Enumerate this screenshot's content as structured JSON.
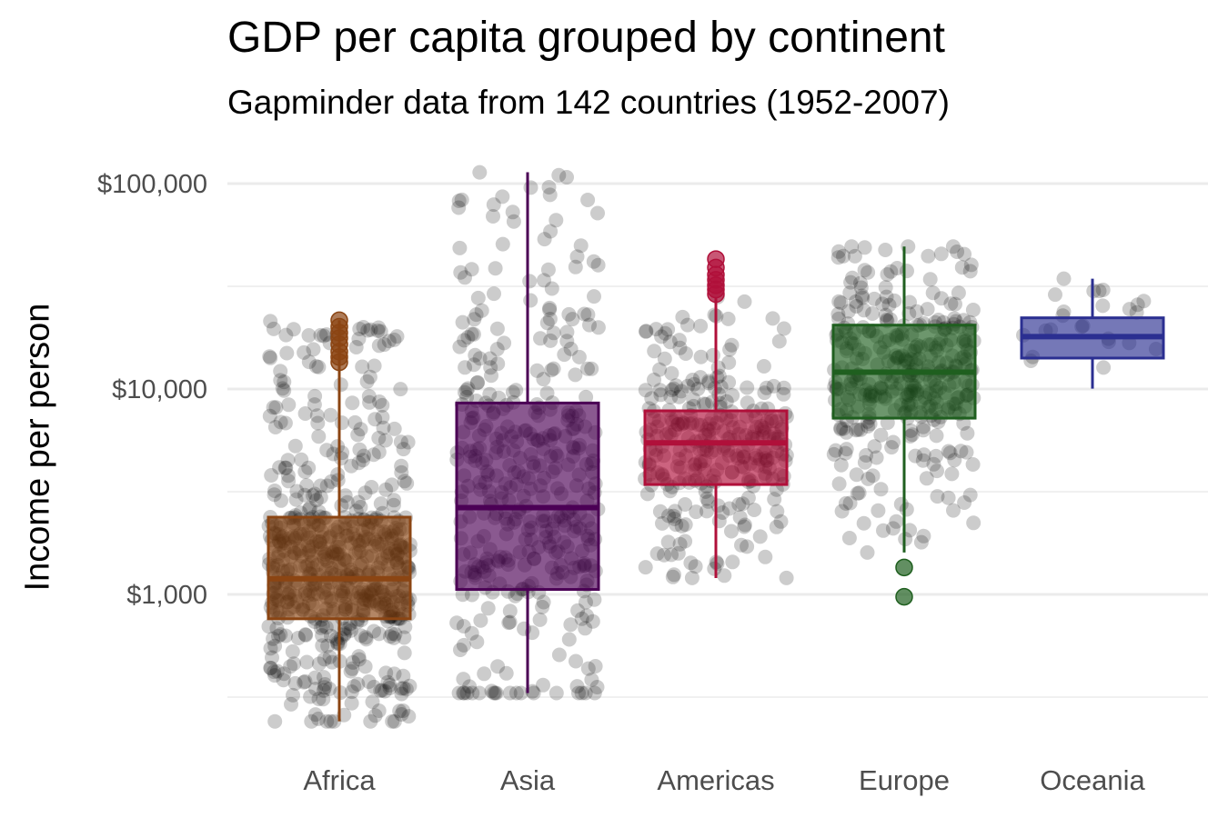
{
  "chart_data": {
    "type": "box",
    "title": "GDP per capita grouped by continent",
    "subtitle": "Gapminder data from 142 countries (1952-2007)",
    "xlabel": "",
    "ylabel": "Income per person",
    "yscale": "log10",
    "ylim": [
      230,
      130000
    ],
    "yticks": [
      {
        "value": 1000,
        "label": "$1,000"
      },
      {
        "value": 10000,
        "label": "$10,000"
      },
      {
        "value": 100000,
        "label": "$100,000"
      }
    ],
    "grid": true,
    "legend": "none",
    "categories": [
      "Africa",
      "Asia",
      "Americas",
      "Europe",
      "Oceania"
    ],
    "series": [
      {
        "category": "Africa",
        "color": "#8B4513",
        "points": 624,
        "box": {
          "whisker_low": 241,
          "q1": 761,
          "median": 1192,
          "q3": 2377,
          "whisker_high": 21600
        },
        "outliers": [
          13500,
          14300,
          15200,
          16500,
          17700,
          18800,
          20100,
          21600
        ]
      },
      {
        "category": "Asia",
        "color": "#4B0055",
        "points": 396,
        "box": {
          "whisker_low": 331,
          "q1": 1057,
          "median": 2647,
          "q3": 8549,
          "whisker_high": 113523
        },
        "outliers": []
      },
      {
        "category": "Americas",
        "color": "#B0103A",
        "points": 300,
        "box": {
          "whisker_low": 1202,
          "q1": 3428,
          "median": 5466,
          "q3": 7830,
          "whisker_high": 28000
        },
        "outliers": [
          29000,
          30500,
          32000,
          34000,
          36000,
          39000,
          42900
        ]
      },
      {
        "category": "Europe",
        "color": "#1F5F1F",
        "points": 360,
        "box": {
          "whisker_low": 1600,
          "q1": 7213,
          "median": 12081,
          "q3": 20461,
          "whisker_high": 49357
        },
        "outliers": [
          974,
          1353
        ]
      },
      {
        "category": "Oceania",
        "color": "#2B2F91",
        "points": 24,
        "box": {
          "whisker_low": 10040,
          "q1": 14142,
          "median": 17983,
          "q3": 22214,
          "whisker_high": 34435
        },
        "outliers": []
      }
    ]
  }
}
